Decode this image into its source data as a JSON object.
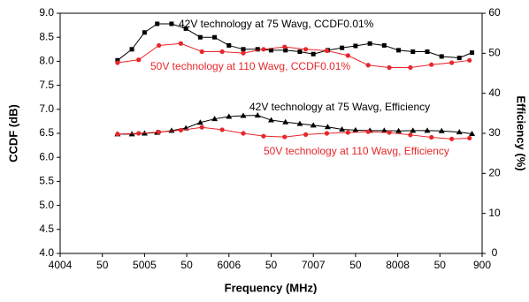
{
  "chart_data": {
    "type": "line",
    "xlabel": "Frequency (MHz)",
    "ylabel": "CCDF (dB)",
    "y2label": "Efficiency (%)",
    "xlim": [
      400,
      900
    ],
    "xticks": [
      {
        "value": 400,
        "label": "4004"
      },
      {
        "value": 450,
        "label": "50"
      },
      {
        "value": 500,
        "label": "5005"
      },
      {
        "value": 550,
        "label": "50"
      },
      {
        "value": 600,
        "label": "6006"
      },
      {
        "value": 650,
        "label": "50"
      },
      {
        "value": 700,
        "label": "7007"
      },
      {
        "value": 750,
        "label": "50"
      },
      {
        "value": 800,
        "label": "8008"
      },
      {
        "value": 850,
        "label": "50"
      },
      {
        "value": 900,
        "label": "900"
      }
    ],
    "ylim": [
      4.0,
      9.0
    ],
    "yticks": [
      {
        "value": 4,
        "label": "4.0"
      },
      {
        "value": 4.5,
        "label": "4.5"
      },
      {
        "value": 5,
        "label": "5.0"
      },
      {
        "value": 5.5,
        "label": "5.5"
      },
      {
        "value": 6,
        "label": "6.0"
      },
      {
        "value": 6.5,
        "label": "6.5"
      },
      {
        "value": 7,
        "label": "7.0"
      },
      {
        "value": 7.5,
        "label": "7.5"
      },
      {
        "value": 8,
        "label": "8.0"
      },
      {
        "value": 8.5,
        "label": "8.5"
      },
      {
        "value": 9,
        "label": "9.0"
      }
    ],
    "y2lim": [
      0,
      60
    ],
    "y2ticks": [
      0,
      10,
      20,
      30,
      40,
      50,
      60
    ],
    "series": [
      {
        "name": "42V technology at 75 Wavg, CCDF0.01%",
        "color": "#000000",
        "marker": "square",
        "x": [
          468,
          485,
          500,
          515,
          532,
          549,
          566,
          583,
          600,
          617,
          634,
          650,
          667,
          684,
          700,
          717,
          734,
          750,
          767,
          784,
          801,
          818,
          835,
          852,
          873,
          888
        ],
        "values": [
          8.02,
          8.25,
          8.6,
          8.78,
          8.78,
          8.68,
          8.5,
          8.5,
          8.33,
          8.25,
          8.25,
          8.23,
          8.23,
          8.2,
          8.15,
          8.23,
          8.28,
          8.32,
          8.37,
          8.33,
          8.23,
          8.2,
          8.2,
          8.1,
          8.07,
          8.18
        ]
      },
      {
        "name": "50V technology at 110 Wavg, CCDF0.01%",
        "color": "#e8262a",
        "marker": "circle",
        "x": [
          468,
          493,
          517,
          543,
          568,
          592,
          617,
          641,
          666,
          691,
          716,
          741,
          765,
          790,
          815,
          840,
          864,
          885
        ],
        "values": [
          7.97,
          8.03,
          8.33,
          8.37,
          8.2,
          8.2,
          8.17,
          8.25,
          8.3,
          8.25,
          8.22,
          8.12,
          7.92,
          7.87,
          7.87,
          7.93,
          7.97,
          8.02
        ]
      },
      {
        "name": "42V technology at 75 Wavg, Efficiency",
        "color": "#000000",
        "marker": "triangle",
        "axis": "y2",
        "x": [
          468,
          485,
          500,
          515,
          532,
          549,
          566,
          583,
          600,
          617,
          634,
          650,
          667,
          684,
          700,
          717,
          734,
          750,
          767,
          784,
          801,
          818,
          835,
          852,
          873,
          888
        ],
        "values": [
          29.8,
          29.8,
          30.0,
          30.2,
          30.7,
          31.3,
          32.7,
          33.6,
          34.2,
          34.4,
          34.5,
          33.3,
          32.8,
          32.4,
          32.0,
          31.6,
          31.0,
          30.8,
          30.7,
          30.7,
          30.6,
          30.7,
          30.7,
          30.6,
          30.3,
          29.9
        ]
      },
      {
        "name": "50V technology at 110 Wavg, Efficiency",
        "color": "#e8262a",
        "marker": "circle",
        "axis": "y2",
        "x": [
          468,
          493,
          517,
          543,
          568,
          592,
          617,
          641,
          666,
          691,
          716,
          741,
          765,
          790,
          815,
          840,
          864,
          885
        ],
        "values": [
          29.8,
          30.0,
          30.3,
          30.8,
          31.5,
          30.9,
          30.0,
          29.3,
          29.1,
          29.7,
          30.0,
          30.2,
          30.4,
          30.2,
          29.6,
          29.0,
          28.6,
          28.8
        ]
      }
    ]
  }
}
